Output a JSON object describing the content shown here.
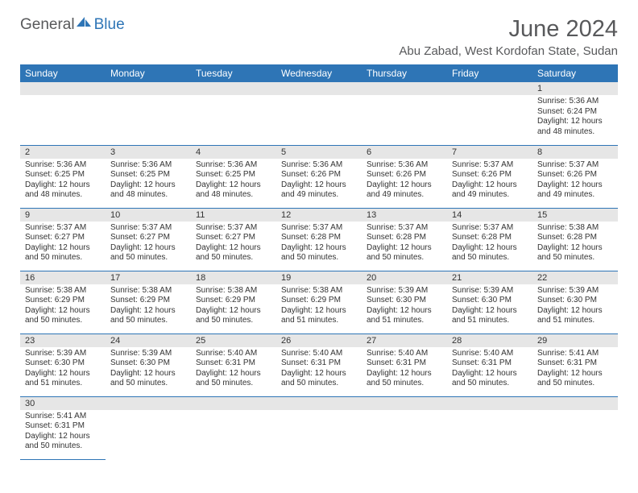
{
  "logo": {
    "text1": "General",
    "text2": "Blue",
    "color1": "#58595b",
    "color2": "#2e75b6"
  },
  "title": "June 2024",
  "location": "Abu Zabad, West Kordofan State, Sudan",
  "theme": {
    "header_bg": "#2e75b6",
    "header_text": "#ffffff",
    "daynum_bg": "#e6e6e6",
    "border_color": "#2e75b6",
    "text_color": "#333333"
  },
  "weekdays": [
    "Sunday",
    "Monday",
    "Tuesday",
    "Wednesday",
    "Thursday",
    "Friday",
    "Saturday"
  ],
  "weeks": [
    [
      null,
      null,
      null,
      null,
      null,
      null,
      {
        "day": "1",
        "sunrise": "Sunrise: 5:36 AM",
        "sunset": "Sunset: 6:24 PM",
        "daylight": "Daylight: 12 hours and 48 minutes."
      }
    ],
    [
      {
        "day": "2",
        "sunrise": "Sunrise: 5:36 AM",
        "sunset": "Sunset: 6:25 PM",
        "daylight": "Daylight: 12 hours and 48 minutes."
      },
      {
        "day": "3",
        "sunrise": "Sunrise: 5:36 AM",
        "sunset": "Sunset: 6:25 PM",
        "daylight": "Daylight: 12 hours and 48 minutes."
      },
      {
        "day": "4",
        "sunrise": "Sunrise: 5:36 AM",
        "sunset": "Sunset: 6:25 PM",
        "daylight": "Daylight: 12 hours and 48 minutes."
      },
      {
        "day": "5",
        "sunrise": "Sunrise: 5:36 AM",
        "sunset": "Sunset: 6:26 PM",
        "daylight": "Daylight: 12 hours and 49 minutes."
      },
      {
        "day": "6",
        "sunrise": "Sunrise: 5:36 AM",
        "sunset": "Sunset: 6:26 PM",
        "daylight": "Daylight: 12 hours and 49 minutes."
      },
      {
        "day": "7",
        "sunrise": "Sunrise: 5:37 AM",
        "sunset": "Sunset: 6:26 PM",
        "daylight": "Daylight: 12 hours and 49 minutes."
      },
      {
        "day": "8",
        "sunrise": "Sunrise: 5:37 AM",
        "sunset": "Sunset: 6:26 PM",
        "daylight": "Daylight: 12 hours and 49 minutes."
      }
    ],
    [
      {
        "day": "9",
        "sunrise": "Sunrise: 5:37 AM",
        "sunset": "Sunset: 6:27 PM",
        "daylight": "Daylight: 12 hours and 50 minutes."
      },
      {
        "day": "10",
        "sunrise": "Sunrise: 5:37 AM",
        "sunset": "Sunset: 6:27 PM",
        "daylight": "Daylight: 12 hours and 50 minutes."
      },
      {
        "day": "11",
        "sunrise": "Sunrise: 5:37 AM",
        "sunset": "Sunset: 6:27 PM",
        "daylight": "Daylight: 12 hours and 50 minutes."
      },
      {
        "day": "12",
        "sunrise": "Sunrise: 5:37 AM",
        "sunset": "Sunset: 6:28 PM",
        "daylight": "Daylight: 12 hours and 50 minutes."
      },
      {
        "day": "13",
        "sunrise": "Sunrise: 5:37 AM",
        "sunset": "Sunset: 6:28 PM",
        "daylight": "Daylight: 12 hours and 50 minutes."
      },
      {
        "day": "14",
        "sunrise": "Sunrise: 5:37 AM",
        "sunset": "Sunset: 6:28 PM",
        "daylight": "Daylight: 12 hours and 50 minutes."
      },
      {
        "day": "15",
        "sunrise": "Sunrise: 5:38 AM",
        "sunset": "Sunset: 6:28 PM",
        "daylight": "Daylight: 12 hours and 50 minutes."
      }
    ],
    [
      {
        "day": "16",
        "sunrise": "Sunrise: 5:38 AM",
        "sunset": "Sunset: 6:29 PM",
        "daylight": "Daylight: 12 hours and 50 minutes."
      },
      {
        "day": "17",
        "sunrise": "Sunrise: 5:38 AM",
        "sunset": "Sunset: 6:29 PM",
        "daylight": "Daylight: 12 hours and 50 minutes."
      },
      {
        "day": "18",
        "sunrise": "Sunrise: 5:38 AM",
        "sunset": "Sunset: 6:29 PM",
        "daylight": "Daylight: 12 hours and 50 minutes."
      },
      {
        "day": "19",
        "sunrise": "Sunrise: 5:38 AM",
        "sunset": "Sunset: 6:29 PM",
        "daylight": "Daylight: 12 hours and 51 minutes."
      },
      {
        "day": "20",
        "sunrise": "Sunrise: 5:39 AM",
        "sunset": "Sunset: 6:30 PM",
        "daylight": "Daylight: 12 hours and 51 minutes."
      },
      {
        "day": "21",
        "sunrise": "Sunrise: 5:39 AM",
        "sunset": "Sunset: 6:30 PM",
        "daylight": "Daylight: 12 hours and 51 minutes."
      },
      {
        "day": "22",
        "sunrise": "Sunrise: 5:39 AM",
        "sunset": "Sunset: 6:30 PM",
        "daylight": "Daylight: 12 hours and 51 minutes."
      }
    ],
    [
      {
        "day": "23",
        "sunrise": "Sunrise: 5:39 AM",
        "sunset": "Sunset: 6:30 PM",
        "daylight": "Daylight: 12 hours and 51 minutes."
      },
      {
        "day": "24",
        "sunrise": "Sunrise: 5:39 AM",
        "sunset": "Sunset: 6:30 PM",
        "daylight": "Daylight: 12 hours and 50 minutes."
      },
      {
        "day": "25",
        "sunrise": "Sunrise: 5:40 AM",
        "sunset": "Sunset: 6:31 PM",
        "daylight": "Daylight: 12 hours and 50 minutes."
      },
      {
        "day": "26",
        "sunrise": "Sunrise: 5:40 AM",
        "sunset": "Sunset: 6:31 PM",
        "daylight": "Daylight: 12 hours and 50 minutes."
      },
      {
        "day": "27",
        "sunrise": "Sunrise: 5:40 AM",
        "sunset": "Sunset: 6:31 PM",
        "daylight": "Daylight: 12 hours and 50 minutes."
      },
      {
        "day": "28",
        "sunrise": "Sunrise: 5:40 AM",
        "sunset": "Sunset: 6:31 PM",
        "daylight": "Daylight: 12 hours and 50 minutes."
      },
      {
        "day": "29",
        "sunrise": "Sunrise: 5:41 AM",
        "sunset": "Sunset: 6:31 PM",
        "daylight": "Daylight: 12 hours and 50 minutes."
      }
    ],
    [
      {
        "day": "30",
        "sunrise": "Sunrise: 5:41 AM",
        "sunset": "Sunset: 6:31 PM",
        "daylight": "Daylight: 12 hours and 50 minutes."
      },
      null,
      null,
      null,
      null,
      null,
      null
    ]
  ]
}
